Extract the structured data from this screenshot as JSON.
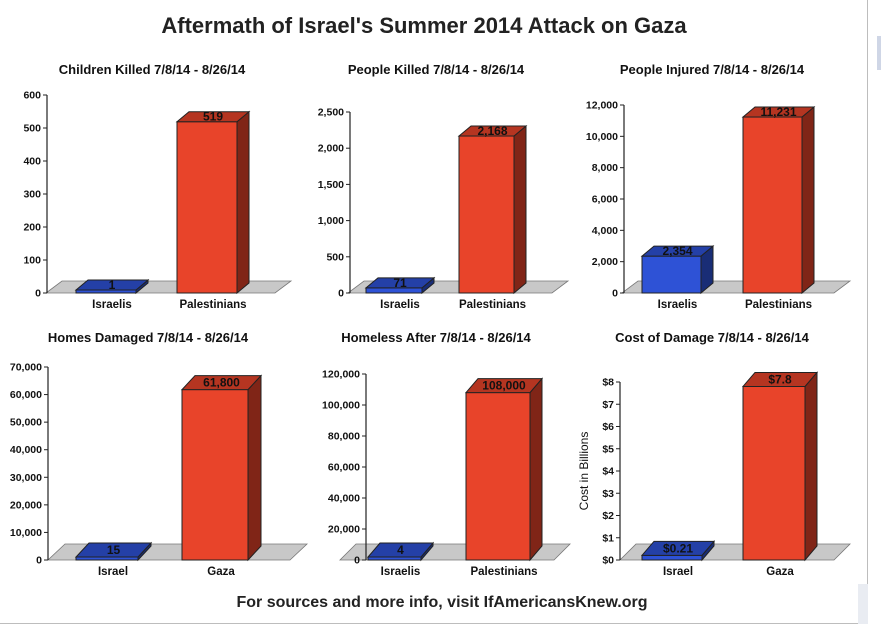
{
  "page": {
    "title": "Aftermath of Israel's Summer 2014 Attack on Gaza",
    "footer": "For sources and more info, visit IfAmericansKnew.org"
  },
  "colors": {
    "israel_bar": "#2e52d6",
    "palestine_bar": "#e8442a",
    "floor": "#c8c8c8"
  },
  "chart_data": [
    {
      "type": "bar",
      "title": "Children Killed 7/8/14 - 8/26/14",
      "categories": [
        "Israelis",
        "Palestinians"
      ],
      "values": [
        1,
        519
      ],
      "value_labels": [
        "1",
        "519"
      ],
      "ylim": [
        0,
        600
      ],
      "yticks": [
        0,
        100,
        200,
        300,
        400,
        500,
        600
      ],
      "ytick_labels": [
        "0",
        "100",
        "200",
        "300",
        "400",
        "500",
        "600"
      ],
      "ylabel": ""
    },
    {
      "type": "bar",
      "title": "People Killed 7/8/14 - 8/26/14",
      "categories": [
        "Israelis",
        "Palestinians"
      ],
      "values": [
        71,
        2168
      ],
      "value_labels": [
        "71",
        "2,168"
      ],
      "ylim": [
        0,
        2500
      ],
      "yticks": [
        0,
        500,
        1000,
        1500,
        2000,
        2500
      ],
      "ytick_labels": [
        "0",
        "500",
        "1,000",
        "1,500",
        "2,000",
        "2,500"
      ],
      "ylabel": ""
    },
    {
      "type": "bar",
      "title": "People Injured 7/8/14 - 8/26/14",
      "categories": [
        "Israelis",
        "Palestinians"
      ],
      "values": [
        2354,
        11231
      ],
      "value_labels": [
        "2,354",
        "11,231"
      ],
      "ylim": [
        0,
        12000
      ],
      "yticks": [
        0,
        2000,
        4000,
        6000,
        8000,
        10000,
        12000
      ],
      "ytick_labels": [
        "0",
        "2,000",
        "4,000",
        "6,000",
        "8,000",
        "10,000",
        "12,000"
      ],
      "ylabel": ""
    },
    {
      "type": "bar",
      "title": "Homes Damaged 7/8/14 - 8/26/14",
      "categories": [
        "Israel",
        "Gaza"
      ],
      "values": [
        15,
        61800
      ],
      "value_labels": [
        "15",
        "61,800"
      ],
      "ylim": [
        0,
        70000
      ],
      "yticks": [
        0,
        10000,
        20000,
        30000,
        40000,
        50000,
        60000,
        70000
      ],
      "ytick_labels": [
        "0",
        "10,000",
        "20,000",
        "30,000",
        "40,000",
        "50,000",
        "60,000",
        "70,000"
      ],
      "ylabel": ""
    },
    {
      "type": "bar",
      "title": "Homeless After 7/8/14 - 8/26/14",
      "categories": [
        "Israelis",
        "Palestinians"
      ],
      "values": [
        4,
        108000
      ],
      "value_labels": [
        "4",
        "108,000"
      ],
      "ylim": [
        0,
        120000
      ],
      "yticks": [
        0,
        20000,
        40000,
        60000,
        80000,
        100000,
        120000
      ],
      "ytick_labels": [
        "0",
        "20,000",
        "40,000",
        "60,000",
        "80,000",
        "100,000",
        "120,000"
      ],
      "ylabel": ""
    },
    {
      "type": "bar",
      "title": "Cost of Damage 7/8/14 - 8/26/14",
      "categories": [
        "Israel",
        "Gaza"
      ],
      "values": [
        0.21,
        7.8
      ],
      "value_labels": [
        "$0.21",
        "$7.8"
      ],
      "ylim": [
        0,
        8
      ],
      "yticks": [
        0,
        1,
        2,
        3,
        4,
        5,
        6,
        7,
        8
      ],
      "ytick_labels": [
        "$0",
        "$1",
        "$2",
        "$3",
        "$4",
        "$5",
        "$6",
        "$7",
        "$8"
      ],
      "ylabel": "Cost in Billions"
    }
  ]
}
